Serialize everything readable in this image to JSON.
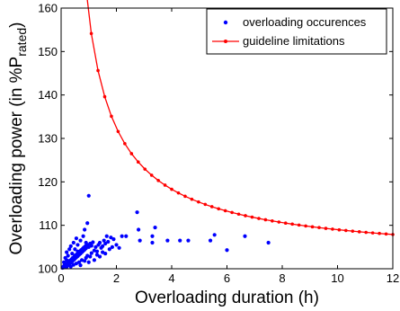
{
  "chart_data": {
    "type": "scatter",
    "title": "",
    "xlabel": "Overloading duration (h)",
    "ylabel_main": "Overloading power (in %P",
    "ylabel_sub": "rated",
    "ylabel_end": ")",
    "xlim": [
      0,
      12
    ],
    "ylim": [
      100,
      160
    ],
    "xticks": [
      0,
      2,
      4,
      6,
      8,
      10,
      12
    ],
    "yticks": [
      100,
      110,
      120,
      130,
      140,
      150,
      160
    ],
    "grid": false,
    "legend_position": "top-right",
    "series": [
      {
        "name": "overloading occurences",
        "kind": "scatter",
        "color": "#0000ff",
        "points": [
          [
            0.05,
            100.2
          ],
          [
            0.08,
            100.5
          ],
          [
            0.1,
            100.3
          ],
          [
            0.12,
            100.8
          ],
          [
            0.15,
            100.6
          ],
          [
            0.18,
            101.0
          ],
          [
            0.2,
            100.4
          ],
          [
            0.22,
            101.3
          ],
          [
            0.25,
            100.9
          ],
          [
            0.28,
            101.6
          ],
          [
            0.3,
            101.1
          ],
          [
            0.32,
            101.9
          ],
          [
            0.35,
            101.4
          ],
          [
            0.38,
            102.2
          ],
          [
            0.4,
            101.7
          ],
          [
            0.42,
            102.5
          ],
          [
            0.45,
            102.0
          ],
          [
            0.48,
            102.8
          ],
          [
            0.5,
            102.3
          ],
          [
            0.52,
            103.1
          ],
          [
            0.55,
            102.6
          ],
          [
            0.58,
            103.4
          ],
          [
            0.6,
            102.9
          ],
          [
            0.62,
            103.7
          ],
          [
            0.65,
            103.2
          ],
          [
            0.68,
            104.0
          ],
          [
            0.7,
            103.5
          ],
          [
            0.72,
            104.3
          ],
          [
            0.75,
            103.8
          ],
          [
            0.78,
            104.6
          ],
          [
            0.8,
            104.1
          ],
          [
            0.82,
            104.9
          ],
          [
            0.85,
            104.4
          ],
          [
            0.88,
            105.2
          ],
          [
            0.9,
            104.7
          ],
          [
            0.95,
            105.5
          ],
          [
            1.0,
            105.0
          ],
          [
            1.05,
            105.8
          ],
          [
            1.1,
            105.3
          ],
          [
            1.15,
            106.1
          ],
          [
            0.2,
            102.0
          ],
          [
            0.25,
            103.0
          ],
          [
            0.3,
            100.8
          ],
          [
            0.35,
            100.5
          ],
          [
            0.4,
            103.5
          ],
          [
            0.45,
            100.9
          ],
          [
            0.5,
            104.5
          ],
          [
            0.55,
            101.2
          ],
          [
            0.6,
            105.5
          ],
          [
            0.65,
            101.5
          ],
          [
            0.7,
            106.5
          ],
          [
            0.75,
            102.0
          ],
          [
            0.8,
            107.5
          ],
          [
            0.85,
            101.8
          ],
          [
            0.9,
            102.5
          ],
          [
            0.95,
            103.0
          ],
          [
            1.0,
            101.5
          ],
          [
            1.05,
            102.8
          ],
          [
            1.1,
            103.6
          ],
          [
            1.2,
            104.2
          ],
          [
            1.25,
            105.0
          ],
          [
            1.3,
            104.0
          ],
          [
            1.35,
            105.5
          ],
          [
            1.4,
            106.0
          ],
          [
            1.45,
            104.8
          ],
          [
            1.5,
            105.2
          ],
          [
            1.55,
            106.5
          ],
          [
            1.6,
            105.8
          ],
          [
            1.7,
            106.2
          ],
          [
            1.75,
            104.5
          ],
          [
            1.8,
            107.2
          ],
          [
            1.85,
            105.0
          ],
          [
            1.9,
            106.8
          ],
          [
            2.0,
            105.5
          ],
          [
            2.1,
            104.8
          ],
          [
            1.6,
            103.5
          ],
          [
            1.4,
            102.8
          ],
          [
            1.2,
            102.0
          ],
          [
            1.3,
            103.2
          ],
          [
            1.5,
            103.8
          ],
          [
            0.95,
            110.5
          ],
          [
            1.0,
            116.8
          ],
          [
            0.9,
            106.0
          ],
          [
            0.85,
            109.0
          ],
          [
            1.65,
            107.5
          ],
          [
            2.2,
            107.5
          ],
          [
            2.35,
            107.5
          ],
          [
            2.75,
            113.0
          ],
          [
            2.8,
            109.0
          ],
          [
            2.85,
            106.5
          ],
          [
            3.3,
            107.5
          ],
          [
            3.4,
            109.5
          ],
          [
            3.3,
            106.0
          ],
          [
            3.85,
            106.5
          ],
          [
            4.3,
            106.5
          ],
          [
            4.6,
            106.5
          ],
          [
            5.4,
            106.5
          ],
          [
            5.55,
            107.8
          ],
          [
            6.0,
            104.3
          ],
          [
            6.65,
            107.5
          ],
          [
            7.5,
            106.0
          ],
          [
            0.1,
            101.5
          ],
          [
            0.15,
            102.5
          ],
          [
            0.2,
            103.8
          ],
          [
            0.3,
            104.5
          ],
          [
            0.35,
            105.2
          ],
          [
            0.45,
            106.0
          ],
          [
            0.55,
            107.0
          ],
          [
            0.6,
            104.0
          ],
          [
            0.7,
            100.8
          ]
        ]
      },
      {
        "name": "guideline limitations",
        "kind": "line",
        "color": "#ff0000",
        "marker_every": 1,
        "curve": {
          "a": 101.5,
          "b": 56.9,
          "c": 0.88,
          "from": 0.85,
          "to": 12.0,
          "samples": 47
        }
      }
    ]
  }
}
